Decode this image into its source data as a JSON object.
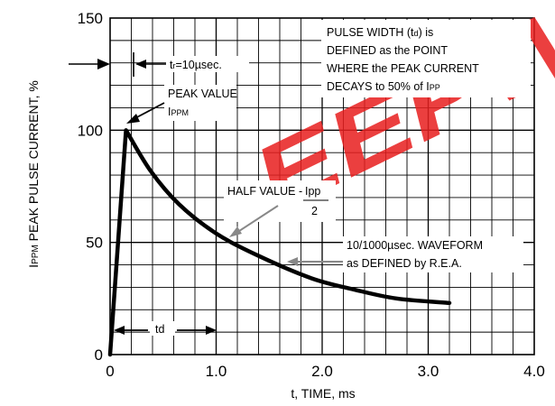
{
  "chart_data": {
    "type": "line",
    "xlabel": "t, TIME, ms",
    "ylabel_prefix": "I",
    "ylabel_sub": "PPM",
    "ylabel_rest": " PEAK PULSE CURRENT, %",
    "xlim": [
      0,
      4.0
    ],
    "ylim": [
      0,
      150
    ],
    "x_ticks": [
      0,
      1.0,
      2.0,
      3.0,
      4.0
    ],
    "x_tick_labels": [
      "0",
      "1.0",
      "2.0",
      "3.0",
      "4.0"
    ],
    "y_ticks": [
      0,
      50,
      100,
      150
    ],
    "y_tick_labels": [
      "0",
      "50",
      "100",
      "150"
    ],
    "grid": true,
    "series": [
      {
        "x": [
          0,
          0.15,
          0.38,
          0.65,
          1.0,
          1.4,
          1.9,
          2.3,
          2.7,
          3.2
        ],
        "y": [
          0,
          100,
          82,
          67,
          54,
          44,
          34,
          29,
          25,
          23
        ]
      }
    ],
    "annotations": {
      "tr_label": "t",
      "tr_sub": "r",
      "tr_value": "=10µsec.",
      "pulse_line1_a": "PULSE WIDTH (t",
      "pulse_line1_sub": "d",
      "pulse_line1_b": ") is",
      "pulse_line2": "DEFINED as the POINT",
      "pulse_line3": "WHERE the PEAK CURRENT",
      "pulse_line4_a": "DECAYS to 50% of I",
      "pulse_line4_sub": "PP",
      "peak_line1": "PEAK VALUE",
      "peak_line2_a": "I",
      "peak_line2_sub": "PPM",
      "half_a": "HALF VALUE - ",
      "half_num": "Ipp",
      "half_den": "2",
      "wave_line1": "10/1000µsec. WAVEFORM",
      "wave_line2": "as DEFINED by R.E.A.",
      "td_label": "td"
    },
    "watermark": "EEPW",
    "colors": {
      "curve": "#000000",
      "grid": "#000000",
      "watermark": "#e82020"
    }
  }
}
